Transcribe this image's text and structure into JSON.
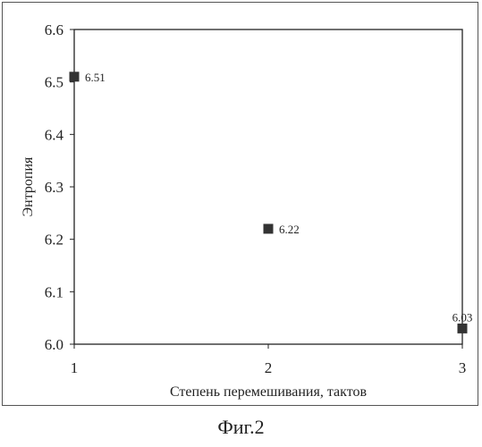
{
  "figure": {
    "caption": "Фиг.2"
  },
  "chart_data": {
    "type": "scatter",
    "xlabel": "Степень перемешивания, тактов",
    "ylabel": "Энтропия",
    "xlim": [
      1,
      3
    ],
    "ylim": [
      6.0,
      6.6
    ],
    "x_ticks": [
      1,
      2,
      3
    ],
    "y_ticks": [
      "6.0",
      "6.1",
      "6.2",
      "6.3",
      "6.4",
      "6.5",
      "6.6"
    ],
    "grid": false,
    "legend": "none",
    "series": [
      {
        "marker": "square",
        "color": "#333333",
        "points": [
          {
            "x": 1,
            "y": 6.51,
            "label": "6.51"
          },
          {
            "x": 2,
            "y": 6.22,
            "label": "6.22"
          },
          {
            "x": 3,
            "y": 6.03,
            "label": "6.03"
          }
        ]
      }
    ]
  }
}
